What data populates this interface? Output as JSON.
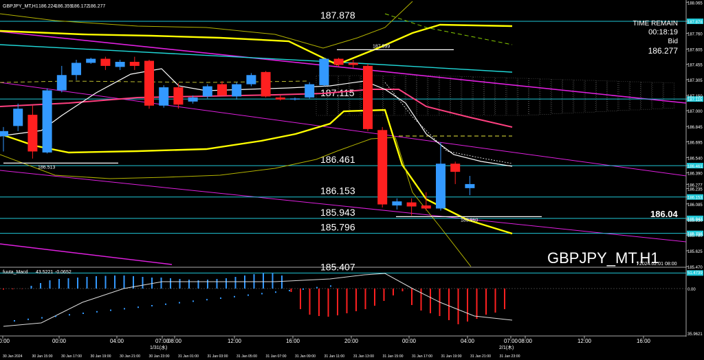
{
  "chart_data": [
    {
      "type": "candlestick",
      "symbol_header": "GBPJPY_MT,H1",
      "header_values": [
        "186.224",
        "186.359",
        "186.172",
        "186.277"
      ],
      "watermark_symbol": "GBPJPY_MT,H1",
      "watermark_date": "2024.02.01 08:00",
      "big_price_label": "186.04",
      "time_panel": {
        "title": "TIME REMAIN",
        "time": "00:18:19",
        "bid_label": "Bid",
        "bid": "186.277"
      },
      "ylim": [
        185.47,
        188.06
      ],
      "price_axis_ticks": [
        "188.065",
        "187.878",
        "187.760",
        "187.605",
        "187.455",
        "187.305",
        "187.150",
        "187.115",
        "187.000",
        "186.845",
        "186.695",
        "186.540",
        "186.461",
        "186.390",
        "186.277",
        "186.235",
        "186.153",
        "186.085",
        "185.943",
        "185.930",
        "185.796",
        "185.780",
        "185.625",
        "185.470"
      ],
      "level_lines": [
        {
          "price": 187.878,
          "label": "187.878",
          "color": "#20c8d8"
        },
        {
          "price": 187.115,
          "label": "187.115",
          "color": "#20c8d8"
        },
        {
          "price": 186.461,
          "label": "186.461",
          "color": "#20c8d8"
        },
        {
          "price": 186.153,
          "label": "186.153",
          "color": "#20c8d8"
        },
        {
          "price": 185.943,
          "label": "185.943",
          "color": "#20c8d8"
        },
        {
          "price": 185.796,
          "label": "185.796",
          "color": "#20c8d8"
        },
        {
          "price": 185.407,
          "label": "185.407",
          "color": "#20c8d8"
        }
      ],
      "marker_labels": [
        {
          "text": "187.599",
          "price": 187.599
        },
        {
          "text": "186.513",
          "price": 186.513
        },
        {
          "text": "185.960",
          "price": 185.96
        }
      ],
      "candles": [
        {
          "o": 186.75,
          "h": 186.84,
          "l": 186.6,
          "c": 186.8
        },
        {
          "o": 186.85,
          "h": 187.07,
          "l": 186.8,
          "c": 187.02
        },
        {
          "o": 186.96,
          "h": 187.05,
          "l": 186.53,
          "c": 186.6
        },
        {
          "o": 186.59,
          "h": 187.22,
          "l": 186.58,
          "c": 187.2
        },
        {
          "o": 187.2,
          "h": 187.44,
          "l": 187.18,
          "c": 187.35
        },
        {
          "o": 187.35,
          "h": 187.5,
          "l": 187.3,
          "c": 187.47
        },
        {
          "o": 187.47,
          "h": 187.52,
          "l": 187.46,
          "c": 187.51
        },
        {
          "o": 187.51,
          "h": 187.53,
          "l": 187.4,
          "c": 187.44
        },
        {
          "o": 187.43,
          "h": 187.5,
          "l": 187.4,
          "c": 187.48
        },
        {
          "o": 187.48,
          "h": 187.53,
          "l": 187.4,
          "c": 187.44
        },
        {
          "o": 187.49,
          "h": 187.5,
          "l": 187.02,
          "c": 187.05
        },
        {
          "o": 187.05,
          "h": 187.25,
          "l": 187.03,
          "c": 187.23
        },
        {
          "o": 187.23,
          "h": 187.27,
          "l": 187.02,
          "c": 187.06
        },
        {
          "o": 187.09,
          "h": 187.15,
          "l": 187.07,
          "c": 187.13
        },
        {
          "o": 187.14,
          "h": 187.26,
          "l": 187.12,
          "c": 187.24
        },
        {
          "o": 187.26,
          "h": 187.29,
          "l": 187.16,
          "c": 187.15
        },
        {
          "o": 187.14,
          "h": 187.28,
          "l": 187.11,
          "c": 187.26
        },
        {
          "o": 187.26,
          "h": 187.37,
          "l": 187.24,
          "c": 187.35
        },
        {
          "o": 187.38,
          "h": 187.39,
          "l": 187.13,
          "c": 187.14
        },
        {
          "o": 187.13,
          "h": 187.15,
          "l": 187.1,
          "c": 187.11
        },
        {
          "o": 187.11,
          "h": 187.13,
          "l": 187.1,
          "c": 187.12
        },
        {
          "o": 187.13,
          "h": 187.28,
          "l": 187.12,
          "c": 187.26
        },
        {
          "o": 187.25,
          "h": 187.52,
          "l": 187.24,
          "c": 187.51
        },
        {
          "o": 187.51,
          "h": 187.52,
          "l": 187.43,
          "c": 187.45
        },
        {
          "o": 187.47,
          "h": 187.5,
          "l": 187.42,
          "c": 187.45
        },
        {
          "o": 187.44,
          "h": 187.46,
          "l": 186.8,
          "c": 186.82
        },
        {
          "o": 186.81,
          "h": 186.84,
          "l": 186.05,
          "c": 186.08
        },
        {
          "o": 186.07,
          "h": 186.14,
          "l": 186.03,
          "c": 186.11
        },
        {
          "o": 186.1,
          "h": 186.14,
          "l": 185.97,
          "c": 186.06
        },
        {
          "o": 186.07,
          "h": 186.2,
          "l": 186.02,
          "c": 186.04
        },
        {
          "o": 186.04,
          "h": 186.69,
          "l": 186.02,
          "c": 186.48
        },
        {
          "o": 186.48,
          "h": 186.5,
          "l": 186.28,
          "c": 186.4
        },
        {
          "o": 186.24,
          "h": 186.36,
          "l": 186.17,
          "c": 186.28
        }
      ],
      "sub_indicator": {
        "label": "fuuta_Macd",
        "values": [
          "43.5221",
          "-0.0652"
        ],
        "axis_ticks": [
          "51.4739",
          "0.00",
          "35.9621"
        ],
        "histogram": [
          -1.5,
          -1,
          -0.5,
          4,
          8,
          12,
          14,
          15,
          16,
          17,
          18,
          18.5,
          19,
          19,
          18,
          17,
          16,
          16,
          15,
          14,
          13,
          12,
          13,
          14,
          15,
          17,
          19,
          21,
          23,
          23,
          19,
          -5,
          -30,
          -38,
          -40,
          -41,
          -39,
          -36,
          -33,
          -30,
          -25,
          -18,
          -10,
          -4,
          -24,
          -32,
          -36,
          -40,
          -46,
          -52,
          -48,
          -44,
          -38,
          -35,
          -30
        ]
      },
      "x_time_ticks": [
        "00:00",
        "00:00",
        "04:00",
        "07:00",
        "08:00",
        "12:00",
        "16:00",
        "20:00",
        "00:00",
        "04:00",
        "07:00",
        "08:00",
        "12:00",
        "16:00"
      ],
      "x_date_labels": [
        "1/31(水)",
        "2/1(木)"
      ],
      "x_candle_labels": [
        "30 Jan 2024",
        "30 Jan 15:00",
        "30 Jan 17:00",
        "30 Jan 19:00",
        "30 Jan 21:00",
        "30 Jan 23:00",
        "31 Jan 01:00",
        "31 Jan 03:00",
        "31 Jan 05:00",
        "31 Jan 07:00",
        "31 Jan 09:00",
        "31 Jan 11:00",
        "31 Jan 13:00",
        "31 Jan 15:00",
        "31 Jan 17:00",
        "31 Jan 19:00",
        "31 Jan 21:00",
        "31 Jan 23:00"
      ]
    }
  ],
  "colors": {
    "bull": "#3399ff",
    "bear": "#ff2020",
    "level_line": "#20c8d8",
    "bollinger_main": "#ffff00",
    "bollinger_thin": "#b4b400",
    "magenta_trend": "#e020e0",
    "ma_white": "#ffffff",
    "ma_pink": "#ff4080",
    "cyan_trend": "#20d8d8",
    "cloud_gray": "#707070"
  }
}
